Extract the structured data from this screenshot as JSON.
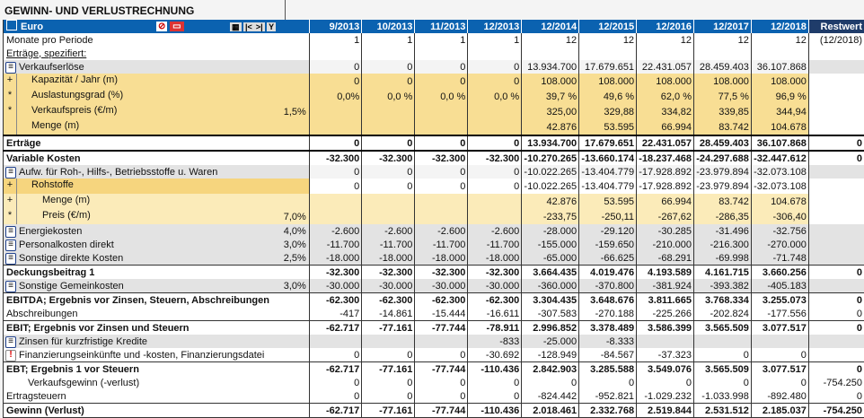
{
  "title": "GEWINN- UND VERLUSTRECHNUNG",
  "header": {
    "label": "Euro",
    "toolbar_icons": [
      "table-icon",
      "clear-icon",
      "barcode-icon",
      "grid-icon",
      "prev-icon",
      "next-icon",
      "filter-icon"
    ],
    "columns": [
      "9/2013",
      "10/2013",
      "11/2013",
      "12/2013",
      "12/2014",
      "12/2015",
      "12/2016",
      "12/2017",
      "12/2018",
      "Restwert"
    ]
  },
  "colors": {
    "header_blue": "#0b62b0",
    "restwert_header": "#1f3c6a",
    "yellow": "#f8de94",
    "grey": "#e3e3e3"
  },
  "rows": [
    {
      "type": "plain",
      "marker": "",
      "label": "Monate pro Periode",
      "pct": "",
      "values": [
        "1",
        "1",
        "1",
        "1",
        "12",
        "12",
        "12",
        "12",
        "12",
        "(12/2018)"
      ]
    },
    {
      "type": "plain",
      "marker": "",
      "label": "Erträge, spezifiert:",
      "underline": true,
      "pct": "",
      "values": [
        "",
        "",
        "",
        "",
        "",
        "",
        "",
        "",
        "",
        ""
      ]
    },
    {
      "type": "grey",
      "marker": "eq",
      "label": "Verkaufserlöse",
      "pct": "",
      "restgrey": true,
      "values": [
        "0",
        "0",
        "0",
        "0",
        "13.934.700",
        "17.679.651",
        "22.431.057",
        "28.459.403",
        "36.107.868",
        ""
      ]
    },
    {
      "type": "yellow",
      "marker": "+",
      "indent": 1,
      "label": "Kapazität / Jahr (m)",
      "pct": "",
      "values": [
        "0",
        "0",
        "0",
        "0",
        "108.000",
        "108.000",
        "108.000",
        "108.000",
        "108.000",
        ""
      ]
    },
    {
      "type": "yellow",
      "marker": "*",
      "indent": 1,
      "label": "Auslastungsgrad (%)",
      "pct": "",
      "values": [
        "0,0%",
        "0,0 %",
        "0,0 %",
        "0,0 %",
        "39,7 %",
        "49,6 %",
        "62,0 %",
        "77,5 %",
        "96,9 %",
        ""
      ]
    },
    {
      "type": "yellow",
      "marker": "*",
      "indent": 1,
      "label": "Verkaufspreis (€/m)",
      "pct": "1,5%",
      "values": [
        "",
        "",
        "",
        "",
        "325,00",
        "329,88",
        "334,82",
        "339,85",
        "344,94",
        ""
      ]
    },
    {
      "type": "yellow",
      "marker": " ",
      "indent": 1,
      "label": "Menge (m)",
      "pct": "",
      "values": [
        "",
        "",
        "",
        "",
        "42.876",
        "53.595",
        "66.994",
        "83.742",
        "104.678",
        ""
      ]
    },
    {
      "type": "ertr",
      "marker": "",
      "label": "Erträge",
      "pct": "",
      "values": [
        "0",
        "0",
        "0",
        "0",
        "13.934.700",
        "17.679.651",
        "22.431.057",
        "28.459.403",
        "36.107.868",
        "0"
      ]
    },
    {
      "type": "bold",
      "marker": "",
      "label": "Variable Kosten",
      "pct": "",
      "values": [
        "-32.300",
        "-32.300",
        "-32.300",
        "-32.300",
        "-10.270.265",
        "-13.660.174",
        "-18.237.468",
        "-24.297.688",
        "-32.447.612",
        "0"
      ]
    },
    {
      "type": "grey",
      "marker": "eq",
      "label": "Aufw. für Roh-, Hilfs-, Betriebsstoffe u. Waren",
      "pct": "",
      "restgrey": true,
      "values": [
        "0",
        "0",
        "0",
        "0",
        "-10.022.265",
        "-13.404.779",
        "-17.928.892",
        "-23.979.894",
        "-32.073.108",
        ""
      ]
    },
    {
      "type": "roh",
      "marker": "+",
      "indent": 1,
      "label": "Rohstoffe",
      "pct": "",
      "values": [
        "0",
        "0",
        "0",
        "0",
        "-10.022.265",
        "-13.404.779",
        "-17.928.892",
        "-23.979.894",
        "-32.073.108",
        ""
      ]
    },
    {
      "type": "yellow2",
      "marker": "+",
      "indent": 2,
      "label": "Menge (m)",
      "pct": "",
      "values": [
        "",
        "",
        "",
        "",
        "42.876",
        "53.595",
        "66.994",
        "83.742",
        "104.678",
        ""
      ]
    },
    {
      "type": "yellow2",
      "marker": "*",
      "indent": 2,
      "label": "Preis (€/m)",
      "pct": "7,0%",
      "values": [
        "",
        "",
        "",
        "",
        "-233,75",
        "-250,11",
        "-267,62",
        "-286,35",
        "-306,40",
        ""
      ]
    },
    {
      "type": "greyall",
      "marker": "eq",
      "label": "Energiekosten",
      "pct": "4,0%",
      "values": [
        "-2.600",
        "-2.600",
        "-2.600",
        "-2.600",
        "-28.000",
        "-29.120",
        "-30.285",
        "-31.496",
        "-32.756",
        ""
      ]
    },
    {
      "type": "greyall",
      "marker": "eq",
      "label": "Personalkosten direkt",
      "pct": "3,0%",
      "values": [
        "-11.700",
        "-11.700",
        "-11.700",
        "-11.700",
        "-155.000",
        "-159.650",
        "-210.000",
        "-216.300",
        "-270.000",
        ""
      ]
    },
    {
      "type": "greyall",
      "marker": "eq",
      "label": "Sonstige direkte Kosten",
      "pct": "2,5%",
      "values": [
        "-18.000",
        "-18.000",
        "-18.000",
        "-18.000",
        "-65.000",
        "-66.625",
        "-68.291",
        "-69.998",
        "-71.748",
        ""
      ]
    },
    {
      "type": "bold",
      "marker": "",
      "label": "Deckungsbeitrag 1",
      "pct": "",
      "values": [
        "-32.300",
        "-32.300",
        "-32.300",
        "-32.300",
        "3.664.435",
        "4.019.476",
        "4.193.589",
        "4.161.715",
        "3.660.256",
        "0"
      ]
    },
    {
      "type": "greyall",
      "marker": "eq",
      "label": "Sonstige Gemeinkosten",
      "pct": "3,0%",
      "values": [
        "-30.000",
        "-30.000",
        "-30.000",
        "-30.000",
        "-360.000",
        "-370.800",
        "-381.924",
        "-393.382",
        "-405.183",
        ""
      ]
    },
    {
      "type": "bold",
      "marker": "",
      "label": "EBITDA; Ergebnis vor Zinsen, Steuern, Abschreibungen",
      "pct": "",
      "values": [
        "-62.300",
        "-62.300",
        "-62.300",
        "-62.300",
        "3.304.435",
        "3.648.676",
        "3.811.665",
        "3.768.334",
        "3.255.073",
        "0"
      ]
    },
    {
      "type": "plain",
      "marker": "",
      "label": "Abschreibungen",
      "pct": "",
      "values": [
        "-417",
        "-14.861",
        "-15.444",
        "-16.611",
        "-307.583",
        "-270.188",
        "-225.266",
        "-202.824",
        "-177.556",
        "0"
      ]
    },
    {
      "type": "bold",
      "marker": "",
      "label": "EBIT; Ergebnis vor Zinsen und Steuern",
      "pct": "",
      "values": [
        "-62.717",
        "-77.161",
        "-77.744",
        "-78.911",
        "2.996.852",
        "3.378.489",
        "3.586.399",
        "3.565.509",
        "3.077.517",
        "0"
      ]
    },
    {
      "type": "greyall",
      "marker": "eq",
      "label": "Zinsen für kurzfristige Kredite",
      "pct": "",
      "values": [
        "",
        "",
        "",
        "-833",
        "-25.000",
        "-8.333",
        "",
        "",
        "",
        ""
      ]
    },
    {
      "type": "plain",
      "marker": "ex",
      "label": "Finanzierungseinkünfte und -kosten, Finanzierungsdatei",
      "pct": "",
      "values": [
        "0",
        "0",
        "0",
        "-30.692",
        "-128.949",
        "-84.567",
        "-37.323",
        "0",
        "0",
        ""
      ]
    },
    {
      "type": "bold",
      "marker": "",
      "label": "EBT; Ergebnis 1 vor Steuern",
      "pct": "",
      "values": [
        "-62.717",
        "-77.161",
        "-77.744",
        "-110.436",
        "2.842.903",
        "3.285.588",
        "3.549.076",
        "3.565.509",
        "3.077.517",
        "0"
      ]
    },
    {
      "type": "plain",
      "marker": "",
      "indent": 1,
      "label": "Verkaufsgewinn (-verlust)",
      "pct": "",
      "values": [
        "0",
        "0",
        "0",
        "0",
        "0",
        "0",
        "0",
        "0",
        "0",
        "-754.250"
      ]
    },
    {
      "type": "plain",
      "marker": "",
      "label": "Ertragsteuern",
      "pct": "",
      "values": [
        "0",
        "0",
        "0",
        "0",
        "-824.442",
        "-952.821",
        "-1.029.232",
        "-1.033.998",
        "-892.480",
        "0"
      ]
    },
    {
      "type": "bold",
      "marker": "",
      "label": "Gewinn (Verlust)",
      "pct": "",
      "values": [
        "-62.717",
        "-77.161",
        "-77.744",
        "-110.436",
        "2.018.461",
        "2.332.768",
        "2.519.844",
        "2.531.512",
        "2.185.037",
        "-754.250"
      ]
    }
  ]
}
